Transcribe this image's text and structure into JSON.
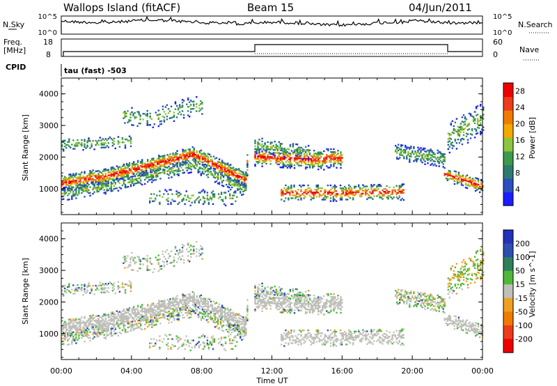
{
  "header": {
    "station": "Wallops Island (fitACF)",
    "beam": "Beam 15",
    "date": "04/Jun/2011"
  },
  "noise_panel": {
    "left_label": "N.Sky",
    "right_label": "N.Search",
    "left_ticks": [
      "10^5",
      "10^0"
    ],
    "right_ticks": [
      "10^5",
      "10^0"
    ]
  },
  "freq_panel": {
    "left_label_1": "Freq.",
    "left_label_2": "[MHz]",
    "left_ticks": [
      "18",
      "8"
    ],
    "right_label": "Nave",
    "right_ticks": [
      "60",
      "0"
    ]
  },
  "cpid": {
    "label": "CPID",
    "value": "tau (fast) -503"
  },
  "colors": {
    "power_scale": [
      "#1c1cff",
      "#2b4fbf",
      "#2e7b6d",
      "#3d9a4a",
      "#8cc63f",
      "#f2a900",
      "#f07b00",
      "#ee3b1c",
      "#ee0000"
    ],
    "velocity_scale": [
      "#2431b8",
      "#2e4fb0",
      "#2f7f5a",
      "#4fb83a",
      "#c0c0bb",
      "#f0a020",
      "#f07b00",
      "#ee3b1c",
      "#ee0000"
    ],
    "ground_scatter": "#c0c0bb"
  },
  "chart_data": [
    {
      "type": "heatmap",
      "name": "power",
      "ylabel": "Slant Range [km]",
      "ylim": [
        180,
        4500
      ],
      "yticks": [
        "1000",
        "2000",
        "3000",
        "4000"
      ],
      "xlim": [
        "00:00",
        "24:00"
      ],
      "colorbar_label": "Power [dB]",
      "colorbar_ticks": [
        "4",
        "8",
        "12",
        "16",
        "20",
        "24",
        "28"
      ],
      "colorbar_range": [
        0,
        30
      ]
    },
    {
      "type": "heatmap",
      "name": "velocity",
      "ylabel": "Slant Range [km]",
      "ylim": [
        180,
        4500
      ],
      "yticks": [
        "1000",
        "2000",
        "3000",
        "4000"
      ],
      "xlim": [
        "00:00",
        "24:00"
      ],
      "colorbar_label": "Velocity [m s^-1]",
      "colorbar_ticks": [
        "200",
        "100",
        "50",
        "15",
        "-15",
        "-50",
        "-100",
        "-200"
      ],
      "ground_scatter_color": "gray"
    }
  ],
  "time_axis": {
    "xlabel": "Time UT",
    "ticks": [
      "00:00",
      "04:00",
      "08:00",
      "12:00",
      "16:00",
      "20:00",
      "00:00"
    ]
  }
}
